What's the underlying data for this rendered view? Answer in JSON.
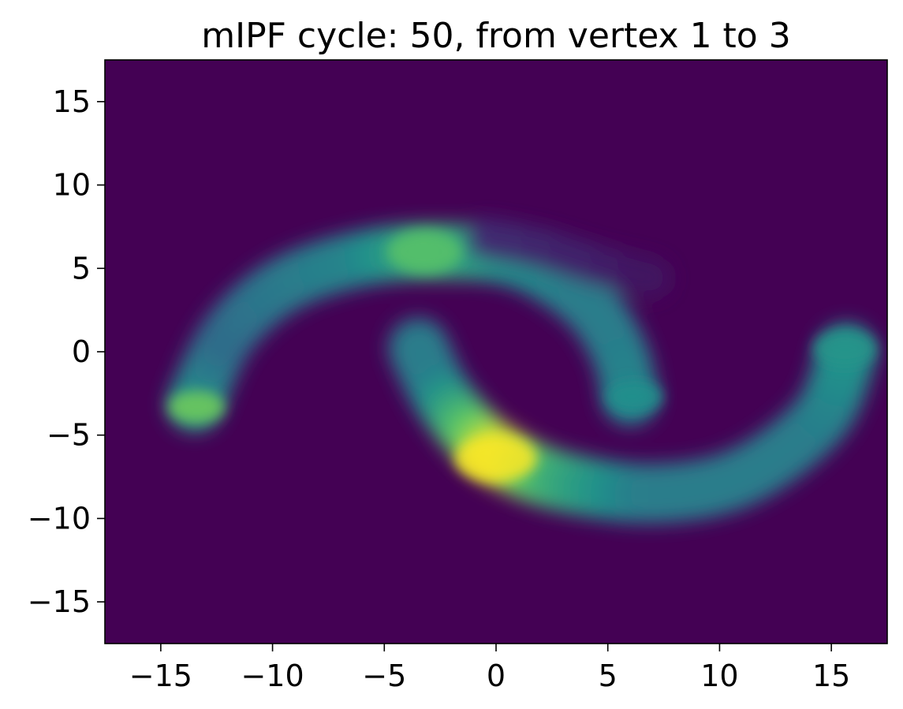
{
  "chart_data": {
    "type": "heatmap",
    "title": "mIPF cycle: 50, from vertex 1 to 3",
    "xlabel": "",
    "ylabel": "",
    "xlim": [
      -17.5,
      17.5
    ],
    "ylim": [
      -17.5,
      17.5
    ],
    "grid": false,
    "legend": "none",
    "colormap": "viridis",
    "background_color": "#440154",
    "x_ticks": [
      -15,
      -10,
      -5,
      0,
      5,
      10,
      15
    ],
    "x_tick_labels": [
      "−15",
      "−10",
      "−5",
      "0",
      "5",
      "10",
      "15"
    ],
    "y_ticks": [
      15,
      10,
      5,
      0,
      -5,
      -10,
      -15
    ],
    "y_tick_labels": [
      "15",
      "10",
      "5",
      "0",
      "−5",
      "−10",
      "−15"
    ],
    "density_arcs": [
      {
        "name_shown": false,
        "points": [
          [
            -13.5,
            -3.2
          ],
          [
            -12,
            1
          ],
          [
            -9.5,
            4
          ],
          [
            -6,
            5.6
          ],
          [
            -2.5,
            6
          ],
          [
            1,
            5.5
          ],
          [
            4,
            3
          ],
          [
            5.5,
            0
          ],
          [
            6,
            -2.8
          ]
        ],
        "intensity": [
          0.55,
          0.35,
          0.4,
          0.45,
          0.62,
          0.5,
          0.42,
          0.42,
          0.45
        ],
        "width": 1.7
      },
      {
        "name_shown": false,
        "points": [
          [
            -3.5,
            0.3
          ],
          [
            -2.5,
            -2.5
          ],
          [
            -1,
            -5
          ],
          [
            0.5,
            -6.5
          ],
          [
            3,
            -7.8
          ],
          [
            7,
            -8.5
          ],
          [
            11,
            -7.5
          ],
          [
            14.5,
            -4
          ],
          [
            15.7,
            0
          ]
        ],
        "intensity": [
          0.42,
          0.42,
          0.7,
          0.95,
          0.62,
          0.42,
          0.42,
          0.42,
          0.5
        ],
        "width": 1.8
      },
      {
        "name_shown": false,
        "points": [
          [
            -0.5,
            6.8
          ],
          [
            2,
            6.2
          ],
          [
            4.5,
            5.2
          ],
          [
            7,
            4.4
          ]
        ],
        "intensity": [
          0.14,
          0.12,
          0.1,
          0.06
        ],
        "width": 1.2
      }
    ],
    "density_spots": [
      {
        "x": -13.4,
        "y": -3.3,
        "intensity": 0.78,
        "radius": 0.9
      },
      {
        "x": -3.2,
        "y": 6.0,
        "intensity": 0.72,
        "radius": 1.2
      },
      {
        "x": 0.0,
        "y": -6.4,
        "intensity": 1.0,
        "radius": 1.3
      },
      {
        "x": 15.6,
        "y": 0.2,
        "intensity": 0.52,
        "radius": 1.0
      },
      {
        "x": 6.2,
        "y": -2.7,
        "intensity": 0.5,
        "radius": 0.9
      }
    ]
  }
}
